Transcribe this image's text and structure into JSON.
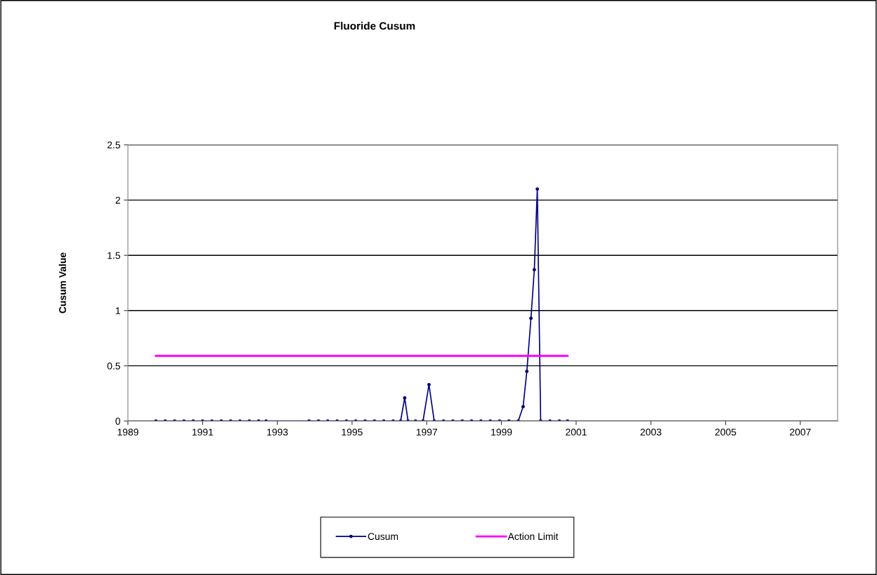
{
  "chart_data": {
    "type": "line",
    "title": "Fluoride Cusum",
    "ylabel": "Cusum Value",
    "xlim": [
      1989,
      2008
    ],
    "xticks": [
      1989,
      1991,
      1993,
      1995,
      1997,
      1999,
      2001,
      2003,
      2005,
      2007
    ],
    "ylim": [
      0,
      2.5
    ],
    "yticks": [
      0,
      0.5,
      1,
      1.5,
      2,
      2.5
    ],
    "grid": "y",
    "legend": "bottom",
    "marker": "circle",
    "line_style": "solid",
    "series": [
      {
        "name": "Cusum",
        "color": "#000080",
        "x": [
          1989.75,
          1990,
          1990.25,
          1990.5,
          1990.75,
          1991,
          1991.25,
          1991.5,
          1991.75,
          1992,
          1992.25,
          1992.5,
          1992.7,
          1993.85,
          1994.1,
          1994.35,
          1994.6,
          1994.85,
          1995.1,
          1995.35,
          1995.6,
          1995.85,
          1996.1,
          1996.3,
          1996.41,
          1996.5,
          1996.7,
          1996.9,
          1997.06,
          1997.2,
          1997.45,
          1997.7,
          1997.95,
          1998.2,
          1998.45,
          1998.7,
          1998.95,
          1999.2,
          1999.45,
          1999.58,
          1999.68,
          1999.79,
          1999.88,
          1999.96,
          2000.05,
          2000.3,
          2000.55,
          2000.77
        ],
        "values": [
          0,
          0,
          0,
          0,
          0,
          0,
          0,
          0,
          0,
          0,
          0,
          0,
          0,
          0,
          0,
          0,
          0,
          0,
          0,
          0,
          0,
          0,
          0,
          0,
          0.21,
          0,
          0,
          0,
          0.33,
          0,
          0,
          0,
          0,
          0,
          0,
          0,
          0,
          0,
          0,
          0.13,
          0.45,
          0.93,
          1.37,
          2.1,
          0,
          0,
          0,
          0
        ]
      },
      {
        "name": "Action Limit",
        "color": "#ff00ff",
        "marker": "none",
        "x": [
          1989.75,
          2000.77
        ],
        "values": [
          0.59,
          0.59
        ]
      }
    ]
  }
}
